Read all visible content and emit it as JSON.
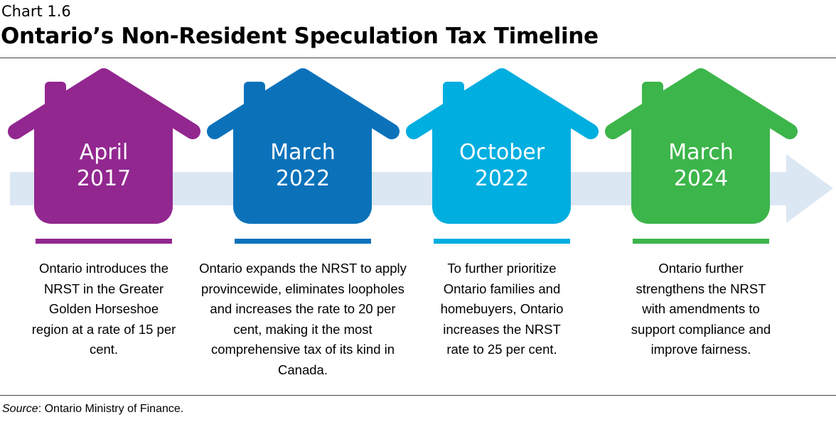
{
  "header": {
    "chart_number": "Chart 1.6",
    "title": "Ontario’s Non-Resident Speculation Tax Timeline"
  },
  "arrow_color": "#dbe7f3",
  "milestones": [
    {
      "month": "April",
      "year": "2017",
      "color": "#92278f",
      "description": "Ontario introduces the NRST in the Greater Golden Horseshoe region at a rate of 15 per cent."
    },
    {
      "month": "March",
      "year": "2022",
      "color": "#0b72ba",
      "description": "Ontario expands the NRST to apply provincewide, eliminates loopholes and increases the rate to 20 per cent, making it the most comprehensive tax of its kind in Canada."
    },
    {
      "month": "October",
      "year": "2022",
      "color": "#00aee0",
      "description": "To further prioritize Ontario families and homebuyers, Ontario increases the NRST rate to 25 per cent."
    },
    {
      "month": "March",
      "year": "2024",
      "color": "#3cb54a",
      "description": "Ontario further strengthens the NRST with amendments to support compliance and improve fairness."
    }
  ],
  "footer": {
    "source_label": "Source",
    "source_text": ": Ontario Ministry of Finance."
  }
}
